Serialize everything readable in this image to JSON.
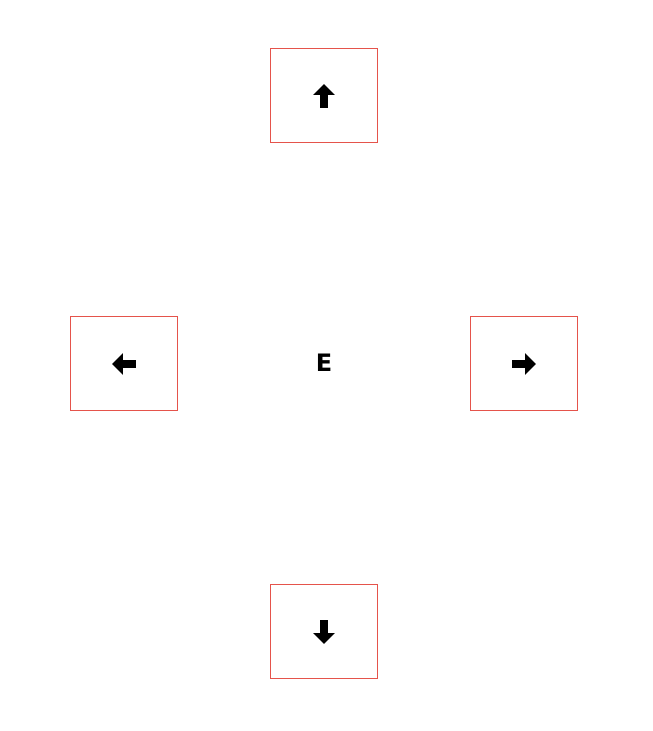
{
  "center": {
    "label": "E"
  },
  "controls": {
    "up": {
      "icon": "arrow-up-icon"
    },
    "left": {
      "icon": "arrow-left-icon"
    },
    "right": {
      "icon": "arrow-right-icon"
    },
    "down": {
      "icon": "arrow-down-icon"
    }
  },
  "colors": {
    "button_border": "#e5534b",
    "arrow": "#000000",
    "background": "#ffffff"
  }
}
